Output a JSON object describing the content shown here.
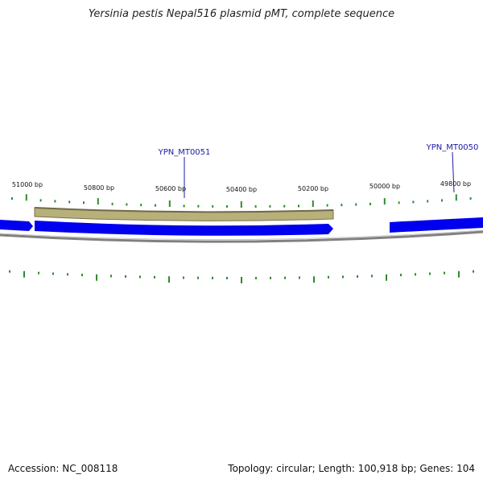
{
  "title": "Yersinia pestis Nepal516 plasmid pMT, complete sequence",
  "footer": {
    "accession": "Accession: NC_008118",
    "summary": "Topology: circular; Length: 100,918 bp; Genes: 104"
  },
  "colors": {
    "cds": "#0000ee",
    "gene_band": "#b8b07a",
    "backbone": "#808080",
    "tick": "#2e8b2e",
    "label_line": "#1a1aa8"
  },
  "ticks": {
    "labels": [
      "51000 bp",
      "50800 bp",
      "50600 bp",
      "50400 bp",
      "50200 bp",
      "50000 bp",
      "49800 bp"
    ]
  },
  "genes": [
    {
      "name": "YPN_MT0051"
    },
    {
      "name": "YPN_MT0050"
    }
  ]
}
